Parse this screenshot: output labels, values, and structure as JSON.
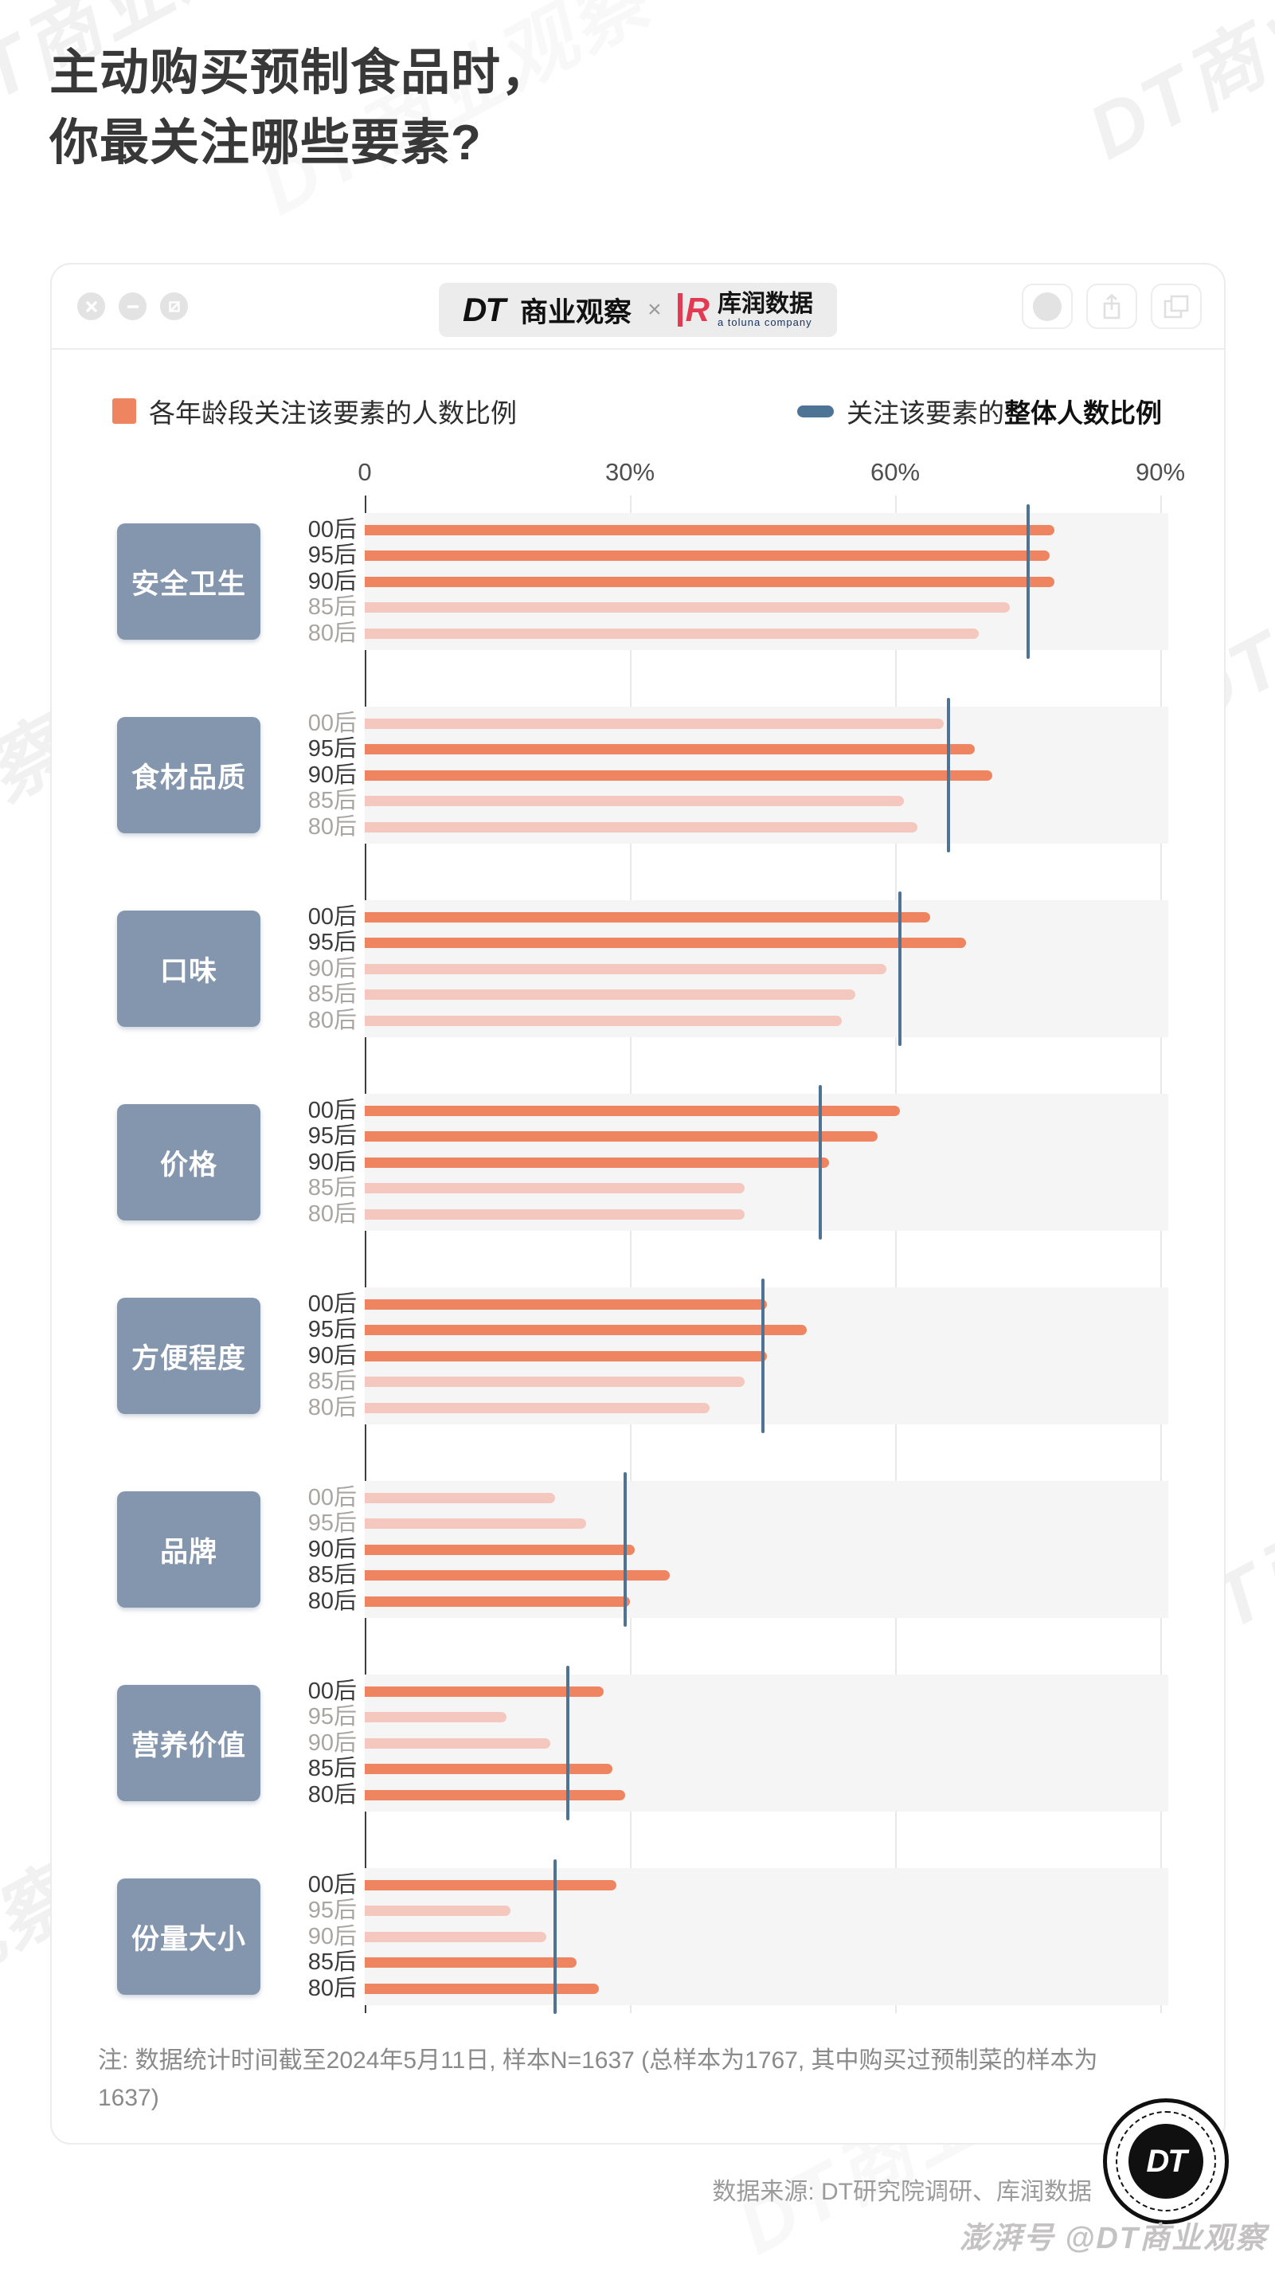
{
  "page": {
    "title_line1": "主动购买预制食品时，",
    "title_line2": "你最关注哪些要素?"
  },
  "header": {
    "brand_dt": "DT",
    "brand_name": "商业观察",
    "cross": "×",
    "partner_mark": "R",
    "partner_name": "库润数据",
    "partner_sub": "a toluna company"
  },
  "legend": {
    "bars_label": "各年龄段关注该要素的人数比例",
    "line_label_prefix": "关注该要素的",
    "line_label_bold": "整体人数比例"
  },
  "chart_data": {
    "type": "bar",
    "orientation": "horizontal",
    "unit": "percent",
    "xlim": [
      0,
      90
    ],
    "x_ticks": [
      "0",
      "30%",
      "60%",
      "90%"
    ],
    "x_tick_values": [
      0,
      30,
      60,
      90
    ],
    "age_groups": [
      "00后",
      "95后",
      "90后",
      "85后",
      "80后"
    ],
    "highlight_rule": "bar is highlighted (saturated) when its value exceeds the group's overall value",
    "groups": [
      {
        "label": "安全卫生",
        "values": [
          78,
          77.5,
          78,
          73,
          69.5
        ],
        "overall": 75
      },
      {
        "label": "食材品质",
        "values": [
          65.5,
          69,
          71,
          61,
          62.5
        ],
        "overall": 66
      },
      {
        "label": "口味",
        "values": [
          64,
          68,
          59,
          55.5,
          54
        ],
        "overall": 60.5
      },
      {
        "label": "价格",
        "values": [
          60.5,
          58,
          52.5,
          43,
          43
        ],
        "overall": 51.5
      },
      {
        "label": "方便程度",
        "values": [
          45.5,
          50,
          45.5,
          43,
          39
        ],
        "overall": 45
      },
      {
        "label": "品牌",
        "values": [
          21.5,
          25,
          30.5,
          34.5,
          30
        ],
        "overall": 29.5
      },
      {
        "label": "营养价值",
        "values": [
          27,
          16,
          21,
          28,
          29.5
        ],
        "overall": 23
      },
      {
        "label": "份量大小",
        "values": [
          28.5,
          16.5,
          20.5,
          24,
          26.5
        ],
        "overall": 21.5
      }
    ],
    "colors": {
      "bar_highlight": "#EF8461",
      "bar_muted": "#F4C8BF",
      "overall_line": "#4E7495",
      "band_bg": "#F5F5F6",
      "gridline": "#E8E8EA",
      "axis": "#3F3F3F",
      "category_box_bg": "#8496AE",
      "category_box_text": "#FFFFFF",
      "age_label_highlight": "#3C3C3C",
      "age_label_muted": "#A9A5A2"
    }
  },
  "footer": {
    "note": "注: 数据统计时间截至2024年5月11日, 样本N=1637 (总样本为1767, 其中购买过预制菜的样本为1637)",
    "source": "数据来源: DT研究院调研、库润数据",
    "logo_text": "DT",
    "watermark_handle": "澎湃号 @DT商业观察"
  },
  "watermark_text": "DT商业观察"
}
